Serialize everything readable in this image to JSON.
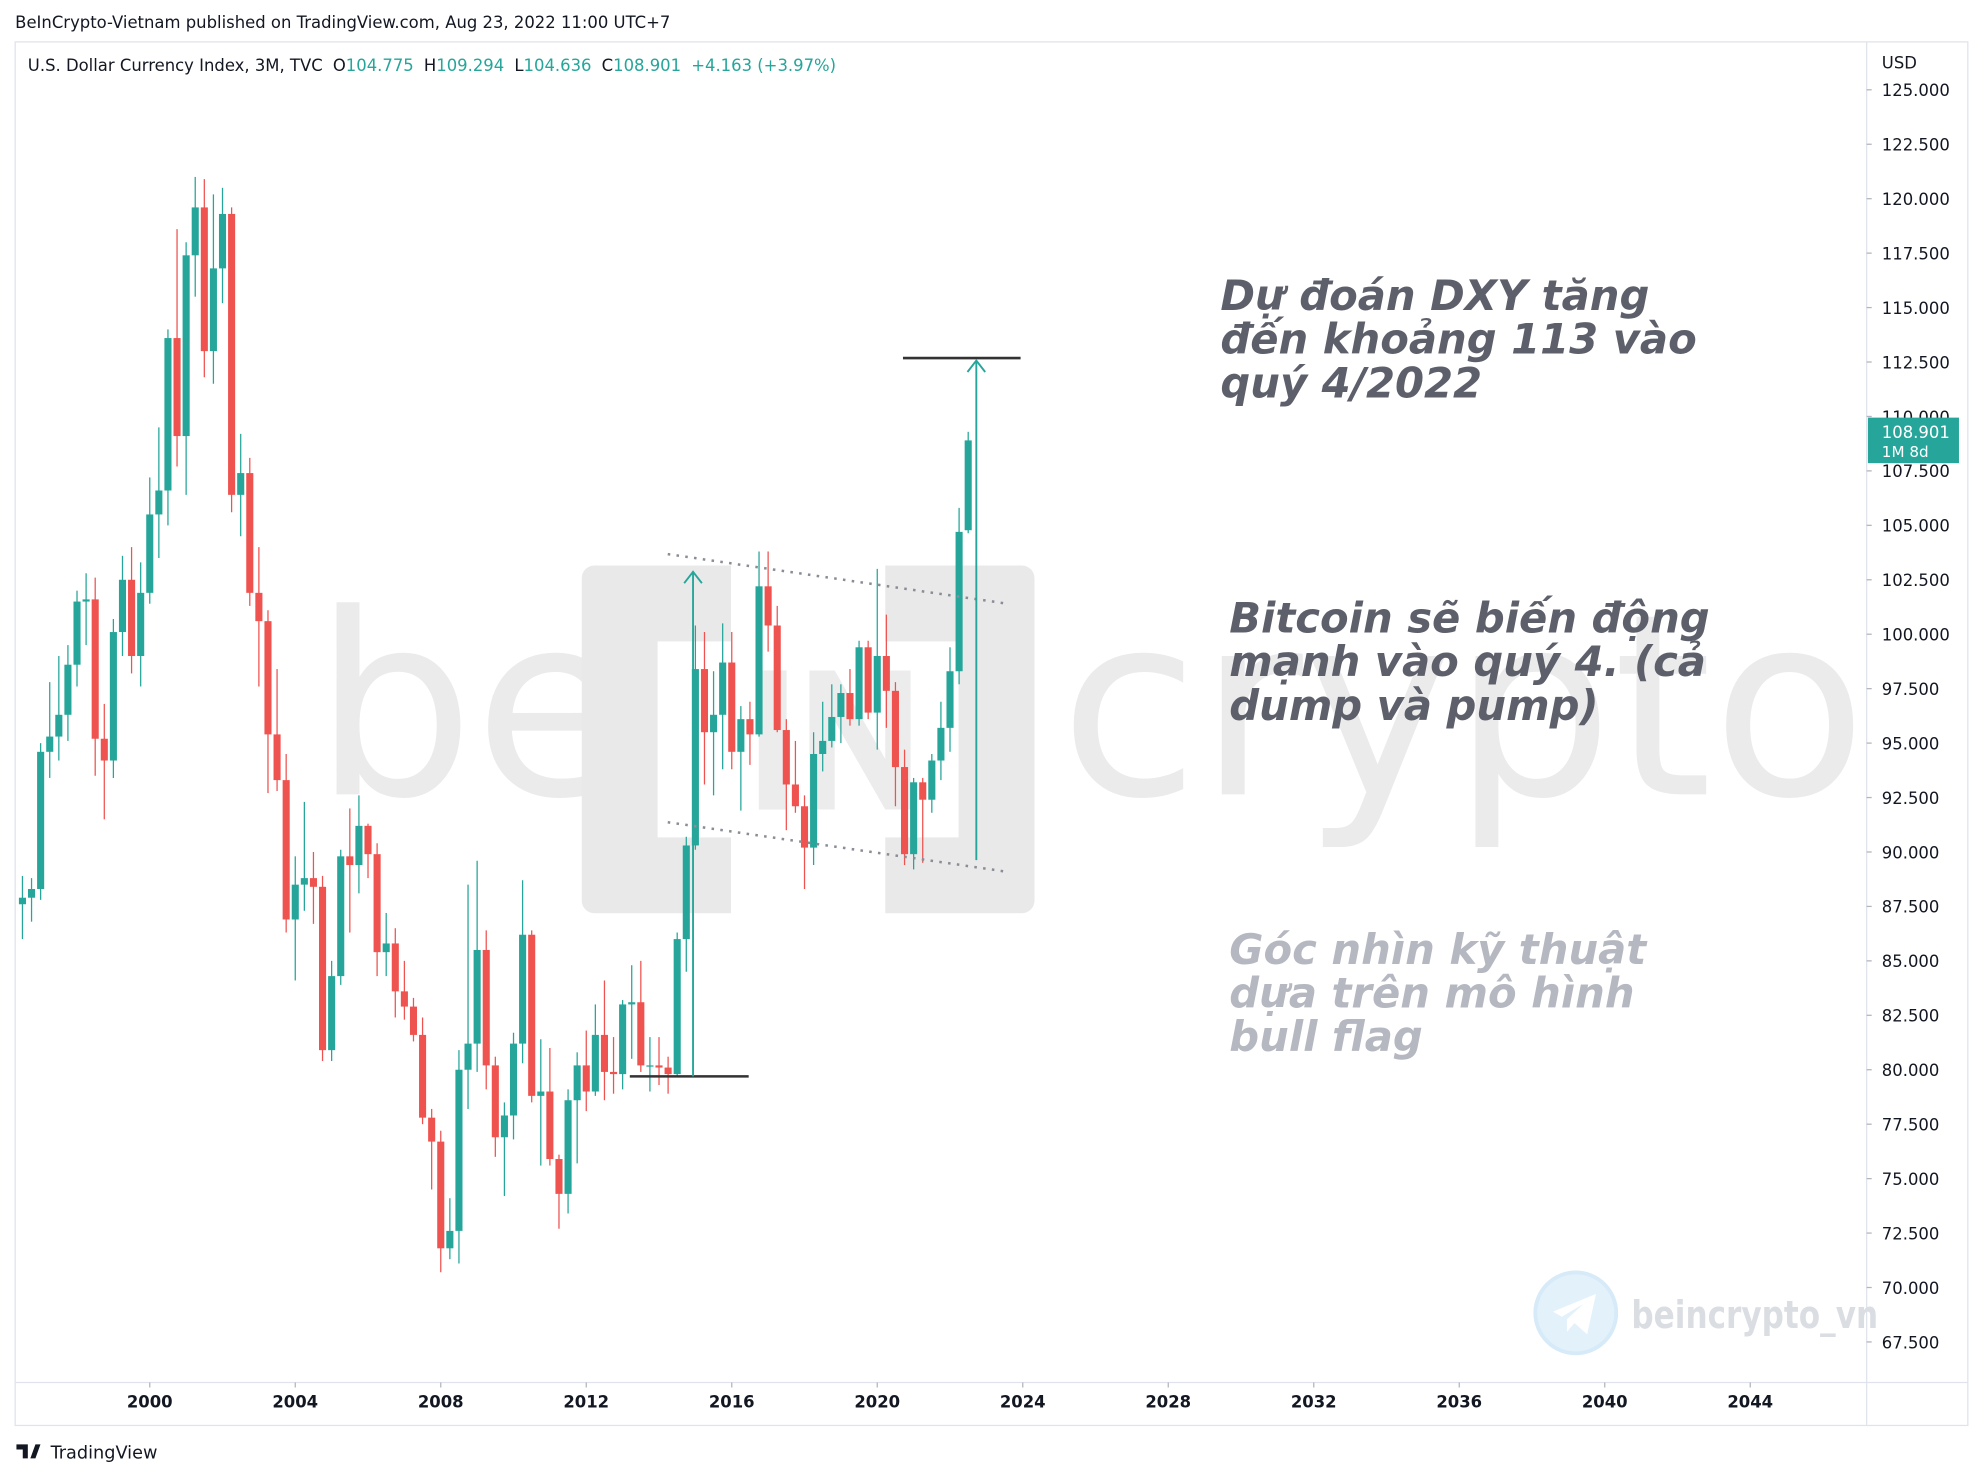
{
  "header": "BeInCrypto-Vietnam published on TradingView.com, Aug 23, 2022 11:00 UTC+7",
  "footer": "TradingView",
  "watermark": {
    "left": "be",
    "right": "crypto",
    "channel": "beincrypto_vn"
  },
  "chart_data": {
    "type": "candlestick",
    "symbol": "U.S. Dollar Currency Index, 3M, TVC",
    "ohlc_labels": [
      "O",
      "H",
      "L",
      "C"
    ],
    "change": "+4.163 (+3.97%)",
    "countdown": "1M 8d",
    "ylabel": "USD",
    "up_color": "#26a69a",
    "down_color": "#ef5350",
    "grid": false,
    "x": [
      1996.5,
      1996.75,
      1997,
      1997.25,
      1997.5,
      1997.75,
      1998,
      1998.25,
      1998.5,
      1998.75,
      1999,
      1999.25,
      1999.5,
      1999.75,
      2000,
      2000.25,
      2000.5,
      2000.75,
      2001,
      2001.25,
      2001.5,
      2001.75,
      2002,
      2002.25,
      2002.5,
      2002.75,
      2003,
      2003.25,
      2003.5,
      2003.75,
      2004,
      2004.25,
      2004.5,
      2004.75,
      2005,
      2005.25,
      2005.5,
      2005.75,
      2006,
      2006.25,
      2006.5,
      2006.75,
      2007,
      2007.25,
      2007.5,
      2007.75,
      2008,
      2008.25,
      2008.5,
      2008.75,
      2009,
      2009.25,
      2009.5,
      2009.75,
      2010,
      2010.25,
      2010.5,
      2010.75,
      2011,
      2011.25,
      2011.5,
      2011.75,
      2012,
      2012.25,
      2012.5,
      2012.75,
      2013,
      2013.25,
      2013.5,
      2013.75,
      2014,
      2014.25,
      2014.5,
      2014.75,
      2015,
      2015.25,
      2015.5,
      2015.75,
      2016,
      2016.25,
      2016.5,
      2016.75,
      2017,
      2017.25,
      2017.5,
      2017.75,
      2018,
      2018.25,
      2018.5,
      2018.75,
      2019,
      2019.25,
      2019.5,
      2019.75,
      2020,
      2020.25,
      2020.5,
      2020.75,
      2021,
      2021.25,
      2021.5,
      2021.75,
      2022,
      2022.25,
      2022.5
    ],
    "open": [
      87.6,
      87.9,
      88.3,
      94.6,
      95.3,
      96.3,
      98.6,
      101.5,
      101.6,
      95.2,
      94.2,
      100.1,
      102.5,
      99.0,
      101.9,
      105.5,
      106.6,
      113.6,
      109.1,
      117.4,
      119.6,
      113.0,
      116.8,
      119.3,
      106.4,
      107.4,
      101.9,
      100.6,
      95.4,
      93.3,
      86.9,
      88.5,
      88.8,
      88.4,
      80.9,
      84.3,
      89.8,
      89.4,
      91.2,
      89.9,
      85.4,
      85.8,
      83.6,
      82.9,
      81.6,
      77.8,
      76.7,
      71.8,
      72.6,
      80.0,
      81.2,
      85.5,
      80.2,
      76.9,
      77.9,
      81.2,
      86.2,
      78.8,
      79.0,
      75.9,
      74.3,
      78.6,
      80.2,
      79.0,
      81.6,
      79.9,
      79.8,
      83.0,
      83.1,
      80.2,
      80.2,
      80.1,
      79.8,
      86.0,
      90.3,
      98.4,
      95.5,
      96.3,
      98.7,
      94.6,
      96.1,
      95.4,
      102.2,
      100.4,
      95.6,
      93.1,
      92.1,
      90.2,
      94.5,
      95.1,
      96.2,
      97.3,
      96.1,
      99.4,
      96.4,
      99.0,
      97.4,
      93.9,
      89.9,
      93.2,
      92.4,
      94.2,
      95.7,
      98.3,
      104.775
    ],
    "high": [
      88.9,
      88.8,
      95.0,
      97.8,
      99.0,
      99.5,
      102.0,
      102.8,
      102.6,
      96.8,
      100.7,
      103.6,
      104.0,
      103.3,
      107.2,
      109.5,
      114.0,
      118.6,
      118.0,
      121.0,
      120.9,
      120.2,
      120.5,
      119.6,
      109.2,
      108.1,
      104.0,
      101.1,
      98.4,
      94.5,
      89.8,
      92.3,
      90.0,
      88.9,
      85.0,
      90.1,
      92.0,
      92.6,
      91.3,
      90.4,
      87.2,
      86.5,
      85.0,
      83.3,
      82.4,
      78.2,
      77.2,
      74.1,
      80.9,
      88.5,
      89.6,
      86.4,
      80.6,
      78.5,
      81.7,
      88.7,
      86.4,
      81.4,
      81.0,
      76.1,
      79.1,
      80.8,
      81.8,
      83.0,
      84.1,
      81.5,
      83.2,
      84.8,
      85.0,
      81.5,
      81.5,
      80.6,
      86.3,
      90.7,
      100.4,
      100.1,
      98.3,
      100.5,
      100.1,
      96.7,
      96.9,
      103.8,
      103.8,
      101.3,
      96.1,
      95.1,
      92.6,
      95.5,
      96.9,
      97.7,
      97.7,
      98.4,
      99.7,
      99.7,
      103.0,
      100.9,
      97.8,
      94.7,
      93.4,
      93.4,
      94.5,
      96.9,
      99.4,
      105.8,
      109.294
    ],
    "low": [
      86.0,
      86.8,
      87.8,
      93.4,
      94.2,
      95.1,
      97.6,
      99.5,
      93.5,
      91.5,
      93.4,
      99.0,
      98.2,
      97.6,
      101.4,
      103.5,
      105.0,
      107.7,
      106.4,
      115.5,
      111.8,
      111.5,
      115.2,
      105.6,
      104.5,
      101.3,
      97.6,
      92.7,
      92.8,
      86.3,
      84.1,
      87.3,
      86.7,
      80.4,
      80.4,
      83.9,
      86.3,
      88.1,
      88.8,
      84.3,
      84.3,
      82.4,
      82.3,
      81.3,
      77.5,
      74.5,
      70.7,
      71.3,
      71.1,
      78.2,
      79.9,
      79.1,
      76.0,
      74.2,
      76.8,
      80.3,
      78.5,
      75.6,
      75.6,
      72.7,
      73.4,
      75.7,
      78.1,
      78.8,
      78.6,
      78.9,
      79.1,
      80.5,
      79.9,
      79.0,
      79.3,
      78.9,
      79.7,
      84.5,
      90.1,
      93.1,
      92.6,
      93.8,
      93.8,
      91.9,
      94.0,
      95.3,
      99.2,
      95.5,
      91.0,
      91.8,
      88.3,
      89.4,
      93.7,
      94.8,
      95.0,
      95.8,
      95.8,
      96.1,
      94.7,
      95.7,
      92.1,
      89.4,
      89.2,
      89.5,
      91.8,
      93.3,
      94.6,
      97.7,
      104.636
    ],
    "close": [
      87.9,
      88.3,
      94.6,
      95.3,
      96.3,
      98.6,
      101.5,
      101.6,
      95.2,
      94.2,
      100.1,
      102.5,
      99.0,
      101.9,
      105.5,
      106.6,
      113.6,
      109.1,
      117.4,
      119.6,
      113.0,
      116.8,
      119.3,
      106.4,
      107.4,
      101.9,
      100.6,
      95.4,
      93.3,
      86.9,
      88.5,
      88.8,
      88.4,
      80.9,
      84.3,
      89.8,
      89.4,
      91.2,
      89.9,
      85.4,
      85.8,
      83.6,
      82.9,
      81.6,
      77.8,
      76.7,
      71.8,
      72.6,
      80.0,
      81.2,
      85.5,
      80.2,
      76.9,
      77.9,
      81.2,
      86.2,
      78.8,
      79.0,
      75.9,
      74.3,
      78.6,
      80.2,
      79.0,
      81.6,
      79.9,
      79.8,
      83.0,
      83.1,
      80.2,
      80.2,
      80.1,
      79.8,
      86.0,
      90.3,
      98.4,
      95.5,
      96.3,
      98.7,
      94.6,
      96.1,
      95.4,
      102.2,
      100.4,
      95.6,
      93.1,
      92.1,
      90.2,
      94.5,
      95.1,
      96.2,
      97.3,
      96.1,
      99.4,
      96.4,
      99.0,
      97.4,
      93.9,
      89.9,
      93.2,
      92.4,
      94.2,
      95.7,
      98.3,
      104.7,
      108.901
    ],
    "xlim": [
      1996.3,
      2047.2
    ],
    "xticks": [
      2000,
      2004,
      2008,
      2012,
      2016,
      2020,
      2024,
      2028,
      2032,
      2036,
      2040,
      2044
    ],
    "ylim": [
      65.64,
      127.2
    ],
    "yticks": [
      {
        "value": 125,
        "label": "125.000"
      },
      {
        "value": 122.5,
        "label": "122.500"
      },
      {
        "value": 120,
        "label": "120.000"
      },
      {
        "value": 117.5,
        "label": "117.500"
      },
      {
        "value": 115,
        "label": "115.000"
      },
      {
        "value": 112.5,
        "label": "112.500"
      },
      {
        "value": 110,
        "label": "110.000"
      },
      {
        "value": 107.5,
        "label": "107.500"
      },
      {
        "value": 105,
        "label": "105.000"
      },
      {
        "value": 102.5,
        "label": "102.500"
      },
      {
        "value": 100,
        "label": "100.000"
      },
      {
        "value": 97.5,
        "label": "97.500"
      },
      {
        "value": 95,
        "label": "95.000"
      },
      {
        "value": 92.5,
        "label": "92.500"
      },
      {
        "value": 90,
        "label": "90.000"
      },
      {
        "value": 87.5,
        "label": "87.500"
      },
      {
        "value": 85,
        "label": "85.000"
      },
      {
        "value": 82.5,
        "label": "82.500"
      },
      {
        "value": 80,
        "label": "80.000"
      },
      {
        "value": 77.5,
        "label": "77.500"
      },
      {
        "value": 75,
        "label": "75.000"
      },
      {
        "value": 72.5,
        "label": "72.500"
      },
      {
        "value": 70,
        "label": "70.000"
      },
      {
        "value": 67.5,
        "label": "67.500"
      }
    ],
    "annotations": [
      {
        "lines": [
          "Dự đoán DXY tăng",
          "đến khoảng 113 vào",
          "quý 4/2022"
        ],
        "color": "#5d606b"
      },
      {
        "lines": [
          "Bitcoin sẽ biến động",
          "mạnh vào quý 4. (cả",
          "dump và pump)"
        ],
        "color": "#5d606b"
      },
      {
        "lines": [
          "Góc nhìn kỹ thuật",
          "dựa trên mô hình",
          "bull flag"
        ],
        "color": "#b5b8c0"
      }
    ]
  }
}
